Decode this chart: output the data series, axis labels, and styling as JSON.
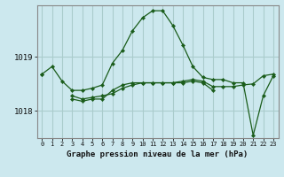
{
  "title": "Graphe pression niveau de la mer (hPa)",
  "background_color": "#cce8ee",
  "grid_color": "#aacccc",
  "line_color": "#1a5c1a",
  "marker_color": "#1a5c1a",
  "x_labels": [
    "0",
    "1",
    "2",
    "3",
    "4",
    "5",
    "6",
    "7",
    "8",
    "9",
    "10",
    "11",
    "12",
    "13",
    "14",
    "15",
    "16",
    "17",
    "18",
    "19",
    "20",
    "21",
    "22",
    "23"
  ],
  "yticks": [
    1018,
    1019
  ],
  "ylim": [
    1017.5,
    1019.95
  ],
  "series": [
    [
      1018.68,
      1018.82,
      1018.55,
      1018.38,
      1018.38,
      1018.42,
      1018.48,
      1018.88,
      1019.12,
      1019.48,
      1019.72,
      1019.85,
      1019.85,
      1019.58,
      1019.22,
      1018.82,
      1018.62,
      1018.58,
      1018.58,
      1018.52,
      1018.52,
      1017.55,
      1018.28,
      1018.65
    ],
    [
      1018.68,
      null,
      null,
      1018.22,
      1018.18,
      1018.22,
      1018.22,
      1018.38,
      1018.48,
      1018.52,
      1018.52,
      1018.52,
      1018.52,
      1018.52,
      1018.55,
      1018.58,
      1018.55,
      1018.45,
      1018.45,
      1018.45,
      1018.48,
      1018.5,
      1018.65,
      1018.68
    ],
    [
      null,
      null,
      null,
      1018.28,
      1018.22,
      1018.25,
      1018.28,
      1018.32,
      1018.42,
      1018.48,
      1018.52,
      1018.52,
      1018.52,
      1018.52,
      1018.52,
      1018.55,
      1018.52,
      1018.38,
      null,
      null,
      null,
      null,
      null,
      null
    ]
  ]
}
